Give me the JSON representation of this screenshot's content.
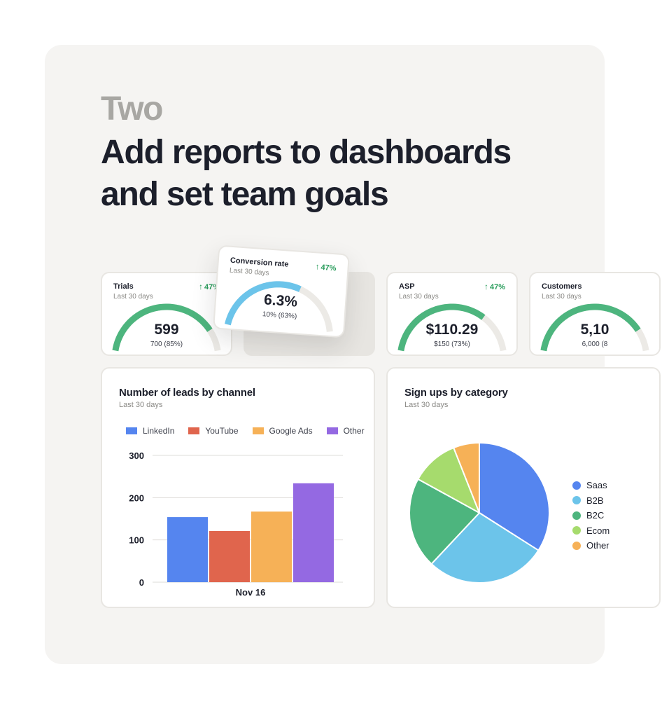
{
  "eyebrow": "Two",
  "headline": "Add reports to dashboards and set team goals",
  "kpis": {
    "trials": {
      "title": "Trials",
      "subtitle": "Last 30 days",
      "delta": "47%",
      "value": "599",
      "goal": "700 (85%)",
      "progress": 0.85,
      "color": "#4db57e"
    },
    "conversion": {
      "title": "Conversion rate",
      "subtitle": "Last 30 days",
      "delta": "47%",
      "value": "6.3%",
      "goal": "10% (63%)",
      "progress": 0.63,
      "color": "#6cc4ea"
    },
    "asp": {
      "title": "ASP",
      "subtitle": "Last 30 days",
      "delta": "47%",
      "value": "$110.29",
      "goal": "$150 (73%)",
      "progress": 0.73,
      "color": "#4db57e"
    },
    "customers": {
      "title": "Customers",
      "subtitle": "Last 30 days",
      "value": "5,10",
      "goal": "6,000 (8",
      "progress": 0.85,
      "color": "#4db57e"
    }
  },
  "leads_chart": {
    "title": "Number of leads by channel",
    "subtitle": "Last 30 days",
    "legend": [
      "LinkedIn",
      "YouTube",
      "Google Ads",
      "Other"
    ]
  },
  "signups_chart": {
    "title": "Sign ups by category",
    "subtitle": "Last 30 days",
    "legend": [
      "Saas",
      "B2B",
      "B2C",
      "Ecom",
      "Other"
    ]
  },
  "colors": {
    "linkedin": "#5585ef",
    "youtube": "#e0654d",
    "google_ads": "#f6b157",
    "other_purple": "#9469e2",
    "green": "#4db57e",
    "light_blue": "#6cc4ea",
    "lime": "#a6db6d",
    "up_arrow": "#2a9d5c"
  },
  "chart_data": [
    {
      "type": "bar",
      "categories": [
        "Nov 16"
      ],
      "series": [
        {
          "name": "LinkedIn",
          "values": [
            154
          ],
          "color": "#5585ef"
        },
        {
          "name": "YouTube",
          "values": [
            121
          ],
          "color": "#e0654d"
        },
        {
          "name": "Google Ads",
          "values": [
            167
          ],
          "color": "#f6b157"
        },
        {
          "name": "Other",
          "values": [
            234
          ],
          "color": "#9469e2"
        }
      ],
      "yticks": [
        0,
        100,
        200,
        300
      ],
      "ylim": [
        0,
        300
      ],
      "grid": true,
      "legend": "top"
    },
    {
      "type": "pie",
      "labels": [
        "Saas",
        "B2B",
        "B2C",
        "Ecom",
        "Other"
      ],
      "values": [
        34,
        28,
        21,
        11,
        6
      ],
      "colors": [
        "#5585ef",
        "#6cc4ea",
        "#4db57e",
        "#a6db6d",
        "#f6b157"
      ],
      "legend": "right"
    }
  ]
}
